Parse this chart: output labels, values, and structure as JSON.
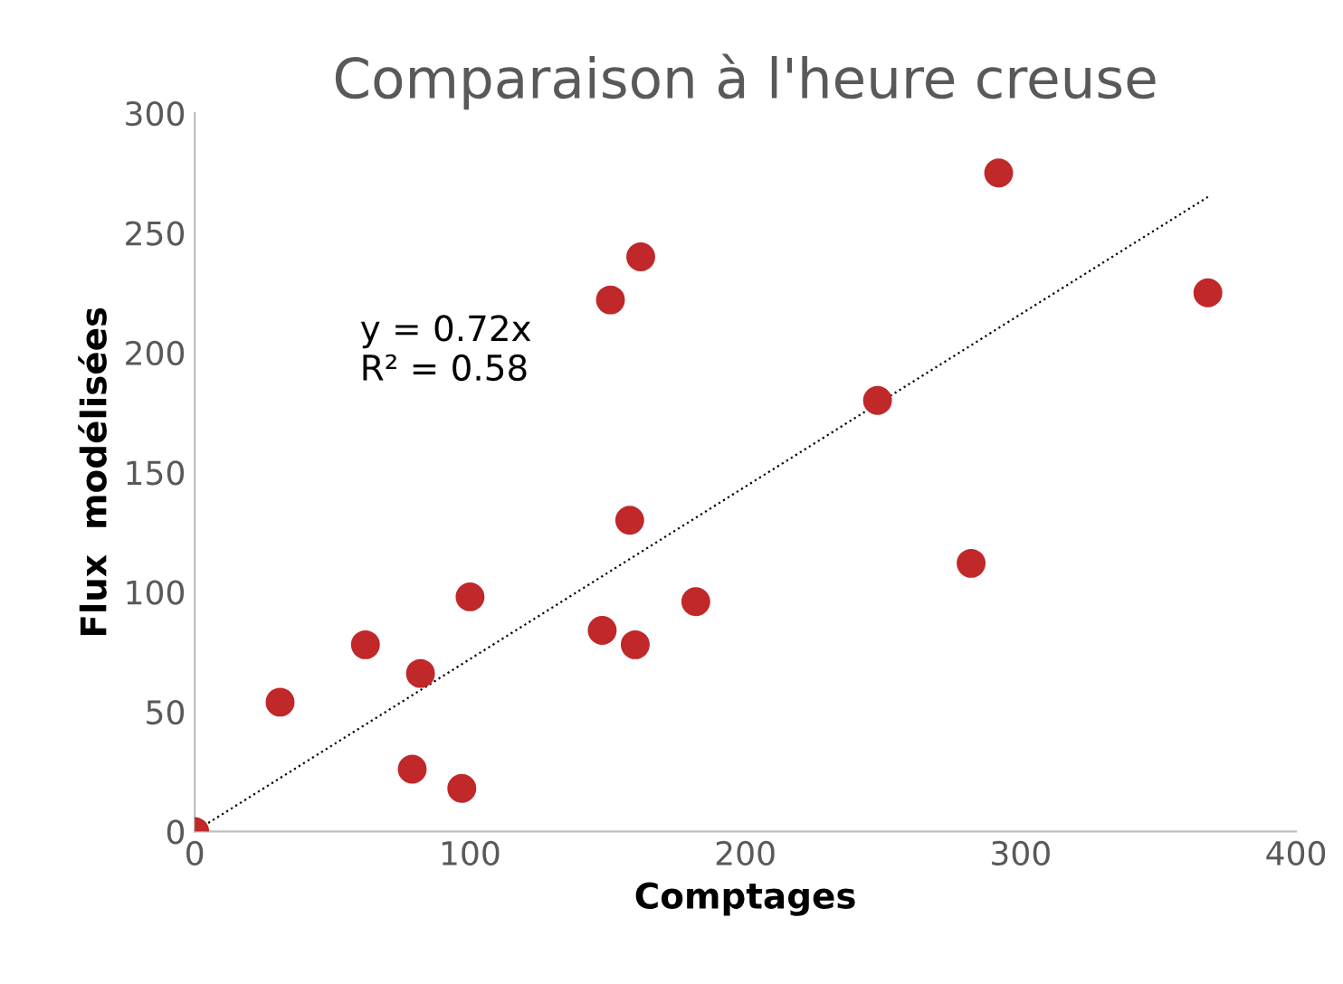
{
  "chart_data": {
    "type": "scatter",
    "title": "Comparaison à l'heure creuse",
    "xlabel": "Comptages",
    "ylabel": "Flux  modélisées",
    "annotations": [
      "y = 0.72x\nR² = 0.58"
    ],
    "series": [
      {
        "color": "#c0282a",
        "marker": "circle",
        "x": [
          0,
          31,
          62,
          79,
          82,
          97,
          100,
          148,
          151,
          158,
          160,
          162,
          182,
          248,
          282,
          292,
          368
        ],
        "values": [
          0,
          54,
          78,
          26,
          66,
          18,
          98,
          84,
          222,
          130,
          78,
          240,
          96,
          180,
          112,
          275,
          225
        ]
      },
      {
        "type": "line",
        "color": "#000000",
        "line_style": "dotted",
        "marker": "none",
        "x": [
          0,
          368
        ],
        "values": [
          0,
          265
        ]
      }
    ],
    "xlim": [
      0,
      400
    ],
    "ylim": [
      0,
      300
    ],
    "xticks": [
      0,
      100,
      200,
      300,
      400
    ],
    "yticks": [
      0,
      50,
      100,
      150,
      200,
      250,
      300
    ],
    "grid": false,
    "legend": false
  }
}
